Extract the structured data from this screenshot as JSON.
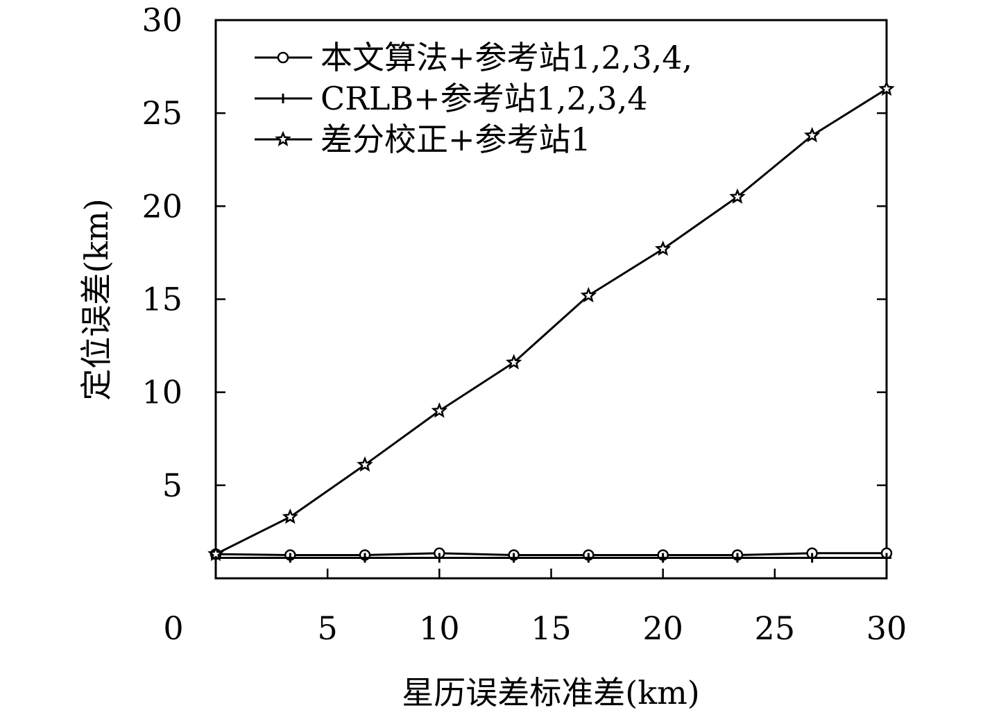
{
  "chart_data": {
    "type": "line",
    "x": [
      0,
      3.33,
      6.67,
      10,
      13.33,
      16.67,
      20,
      23.33,
      26.67,
      30
    ],
    "xlabel": "星历误差标准差(km)",
    "ylabel": "定位误差(km)",
    "xlim": [
      0,
      30
    ],
    "ylim": [
      0,
      30
    ],
    "xticks": [
      "0",
      "5",
      "10",
      "15",
      "20",
      "25",
      "30"
    ],
    "yticks": [
      "5",
      "10",
      "15",
      "20",
      "25",
      "30"
    ],
    "grid": false,
    "legend_position": "top-left",
    "series": [
      {
        "name": "本文算法+参考站1,2,3,4,",
        "marker": "circle",
        "values": [
          1.3,
          1.25,
          1.25,
          1.35,
          1.25,
          1.25,
          1.25,
          1.25,
          1.35,
          1.35
        ]
      },
      {
        "name": "CRLB+参考站1,2,3,4",
        "marker": "plus",
        "values": [
          1.1,
          1.1,
          1.1,
          1.1,
          1.1,
          1.1,
          1.1,
          1.1,
          1.1,
          1.1
        ]
      },
      {
        "name": "差分校正+参考站1",
        "marker": "star",
        "values": [
          1.3,
          3.3,
          6.1,
          9.0,
          11.6,
          15.2,
          17.7,
          20.5,
          23.8,
          26.3
        ]
      }
    ]
  }
}
